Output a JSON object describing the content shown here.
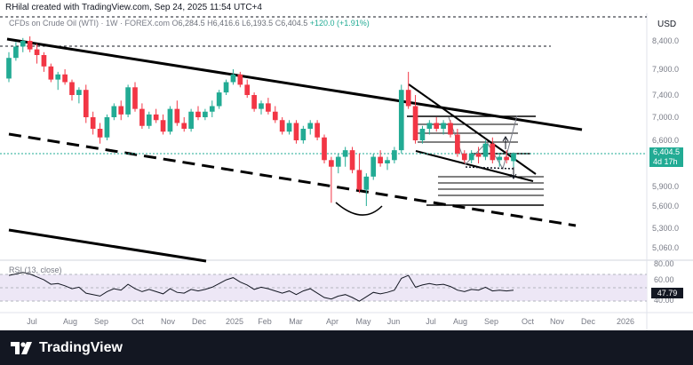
{
  "header": {
    "created_by": "RHilal created with TradingView.com, Sep 24, 2025 11:54 UTC+4"
  },
  "symbol_bar": {
    "name": "CFDs on Crude Oil (WTI) · 1W · FOREX.com",
    "open": "6,284.5",
    "high": "6,416.6",
    "low": "6,193.5",
    "close": "6,404.5",
    "change": "+120.0 (+1.91%)"
  },
  "price_axis": {
    "currency": "USD",
    "ticks": [
      "8,400.0",
      "7,900.0",
      "7,400.0",
      "7,000.0",
      "6,600.0",
      "5,900.0",
      "5,600.0",
      "5,300.0",
      "5,060.0"
    ]
  },
  "last_price": {
    "value": "6,404.5",
    "countdown": "4d 17h"
  },
  "rsi": {
    "label": "RSI (13, close)",
    "value": "47.79",
    "ticks": [
      "80.00",
      "60.00",
      "40.00"
    ]
  },
  "time_axis": {
    "labels": [
      "Jul",
      "Aug",
      "Sep",
      "Oct",
      "Nov",
      "Dec",
      "2025",
      "Feb",
      "Mar",
      "Apr",
      "May",
      "Jun",
      "Jul",
      "Aug",
      "Sep",
      "Oct",
      "Nov",
      "Dec",
      "2026"
    ]
  },
  "footer": {
    "brand": "TradingView"
  },
  "colors": {
    "up": "#22ab94",
    "down": "#f23645",
    "rsi_line": "#131722",
    "rsi_band": "#ede7f6",
    "footer_bg": "#131722"
  },
  "chart_data": {
    "type": "candlestick",
    "price_scale": {
      "min": 5000,
      "max": 8600,
      "unit": "USD"
    },
    "x_labels": [
      "Jul",
      "Aug",
      "Sep",
      "Oct",
      "Nov",
      "Dec",
      "2025",
      "Feb",
      "Mar",
      "Apr",
      "May",
      "Jun",
      "Jul",
      "Aug",
      "Sep",
      "Oct",
      "Nov",
      "Dec",
      "2026"
    ],
    "candles": [
      [
        7720,
        8200,
        7650,
        8100
      ],
      [
        8100,
        8380,
        8050,
        8300
      ],
      [
        8300,
        8450,
        8200,
        8400
      ],
      [
        8400,
        8480,
        8200,
        8250
      ],
      [
        8250,
        8350,
        8000,
        8150
      ],
      [
        8150,
        8200,
        7850,
        7950
      ],
      [
        7950,
        8000,
        7650,
        7700
      ],
      [
        7700,
        7850,
        7500,
        7800
      ],
      [
        7800,
        7900,
        7600,
        7650
      ],
      [
        7650,
        7700,
        7300,
        7400
      ],
      [
        7400,
        7550,
        7250,
        7500
      ],
      [
        7500,
        7600,
        6900,
        7000
      ],
      [
        7000,
        7100,
        6700,
        6800
      ],
      [
        6800,
        6900,
        6550,
        6650
      ],
      [
        6650,
        7050,
        6600,
        7000
      ],
      [
        7000,
        7250,
        6950,
        7200
      ],
      [
        7200,
        7300,
        6950,
        7050
      ],
      [
        7050,
        7600,
        7000,
        7550
      ],
      [
        7550,
        7650,
        7100,
        7150
      ],
      [
        7150,
        7250,
        6800,
        6850
      ],
      [
        6850,
        7100,
        6800,
        7050
      ],
      [
        7050,
        7150,
        6900,
        6950
      ],
      [
        6950,
        7050,
        6700,
        6750
      ],
      [
        6750,
        7200,
        6700,
        7150
      ],
      [
        7150,
        7300,
        6850,
        6900
      ],
      [
        6900,
        7000,
        6750,
        6800
      ],
      [
        6800,
        7150,
        6750,
        7100
      ],
      [
        7100,
        7200,
        6950,
        7000
      ],
      [
        7000,
        7150,
        6950,
        7100
      ],
      [
        7100,
        7300,
        7000,
        7200
      ],
      [
        7200,
        7500,
        7150,
        7450
      ],
      [
        7450,
        7700,
        7400,
        7650
      ],
      [
        7650,
        7900,
        7600,
        7800
      ],
      [
        7800,
        7850,
        7550,
        7600
      ],
      [
        7600,
        7700,
        7350,
        7400
      ],
      [
        7400,
        7450,
        7100,
        7150
      ],
      [
        7150,
        7300,
        7050,
        7250
      ],
      [
        7250,
        7350,
        7050,
        7100
      ],
      [
        7100,
        7200,
        6900,
        6950
      ],
      [
        6950,
        7000,
        6700,
        6750
      ],
      [
        6750,
        6950,
        6700,
        6900
      ],
      [
        6900,
        6950,
        6550,
        6600
      ],
      [
        6600,
        6850,
        6550,
        6800
      ],
      [
        6800,
        6950,
        6700,
        6900
      ],
      [
        6900,
        6950,
        6600,
        6650
      ],
      [
        6650,
        6700,
        6250,
        6300
      ],
      [
        6300,
        6350,
        5650,
        6200
      ],
      [
        6200,
        6400,
        6100,
        6350
      ],
      [
        6350,
        6500,
        6200,
        6450
      ],
      [
        6450,
        6500,
        6100,
        6150
      ],
      [
        6150,
        6400,
        5800,
        5850
      ],
      [
        5850,
        6100,
        5600,
        6050
      ],
      [
        6050,
        6400,
        6000,
        6350
      ],
      [
        6350,
        6450,
        6200,
        6250
      ],
      [
        6250,
        6350,
        6150,
        6300
      ],
      [
        6300,
        6500,
        6250,
        6450
      ],
      [
        6450,
        7600,
        6400,
        7500
      ],
      [
        7500,
        7850,
        7150,
        7200
      ],
      [
        7200,
        7400,
        6550,
        6600
      ],
      [
        6600,
        6850,
        6550,
        6800
      ],
      [
        6800,
        6950,
        6700,
        6900
      ],
      [
        6900,
        7000,
        6750,
        6800
      ],
      [
        6800,
        6950,
        6700,
        6900
      ],
      [
        6900,
        6950,
        6650,
        6700
      ],
      [
        6700,
        6800,
        6350,
        6400
      ],
      [
        6400,
        6450,
        6250,
        6300
      ],
      [
        6300,
        6450,
        6250,
        6400
      ],
      [
        6400,
        6500,
        6250,
        6350
      ],
      [
        6350,
        6600,
        6300,
        6550
      ],
      [
        6550,
        6650,
        6250,
        6300
      ],
      [
        6300,
        6400,
        6200,
        6350
      ],
      [
        6350,
        6450,
        6250,
        6300
      ],
      [
        6284.5,
        6416.6,
        6193.5,
        6404.5
      ]
    ],
    "rsi_values": [
      68,
      70,
      72,
      70,
      66,
      62,
      56,
      57,
      54,
      50,
      52,
      44,
      42,
      40,
      46,
      50,
      48,
      56,
      50,
      46,
      49,
      46,
      43,
      50,
      45,
      44,
      49,
      47,
      49,
      52,
      57,
      62,
      65,
      59,
      55,
      49,
      52,
      50,
      47,
      44,
      47,
      42,
      47,
      50,
      44,
      38,
      36,
      40,
      42,
      38,
      33,
      39,
      45,
      43,
      45,
      48,
      64,
      68,
      52,
      55,
      57,
      55,
      56,
      53,
      48,
      46,
      49,
      48,
      52,
      47,
      48,
      47,
      48
    ],
    "rsi_scale": {
      "min": 20,
      "max": 85
    },
    "rsi_levels": [
      70,
      50,
      30
    ]
  }
}
